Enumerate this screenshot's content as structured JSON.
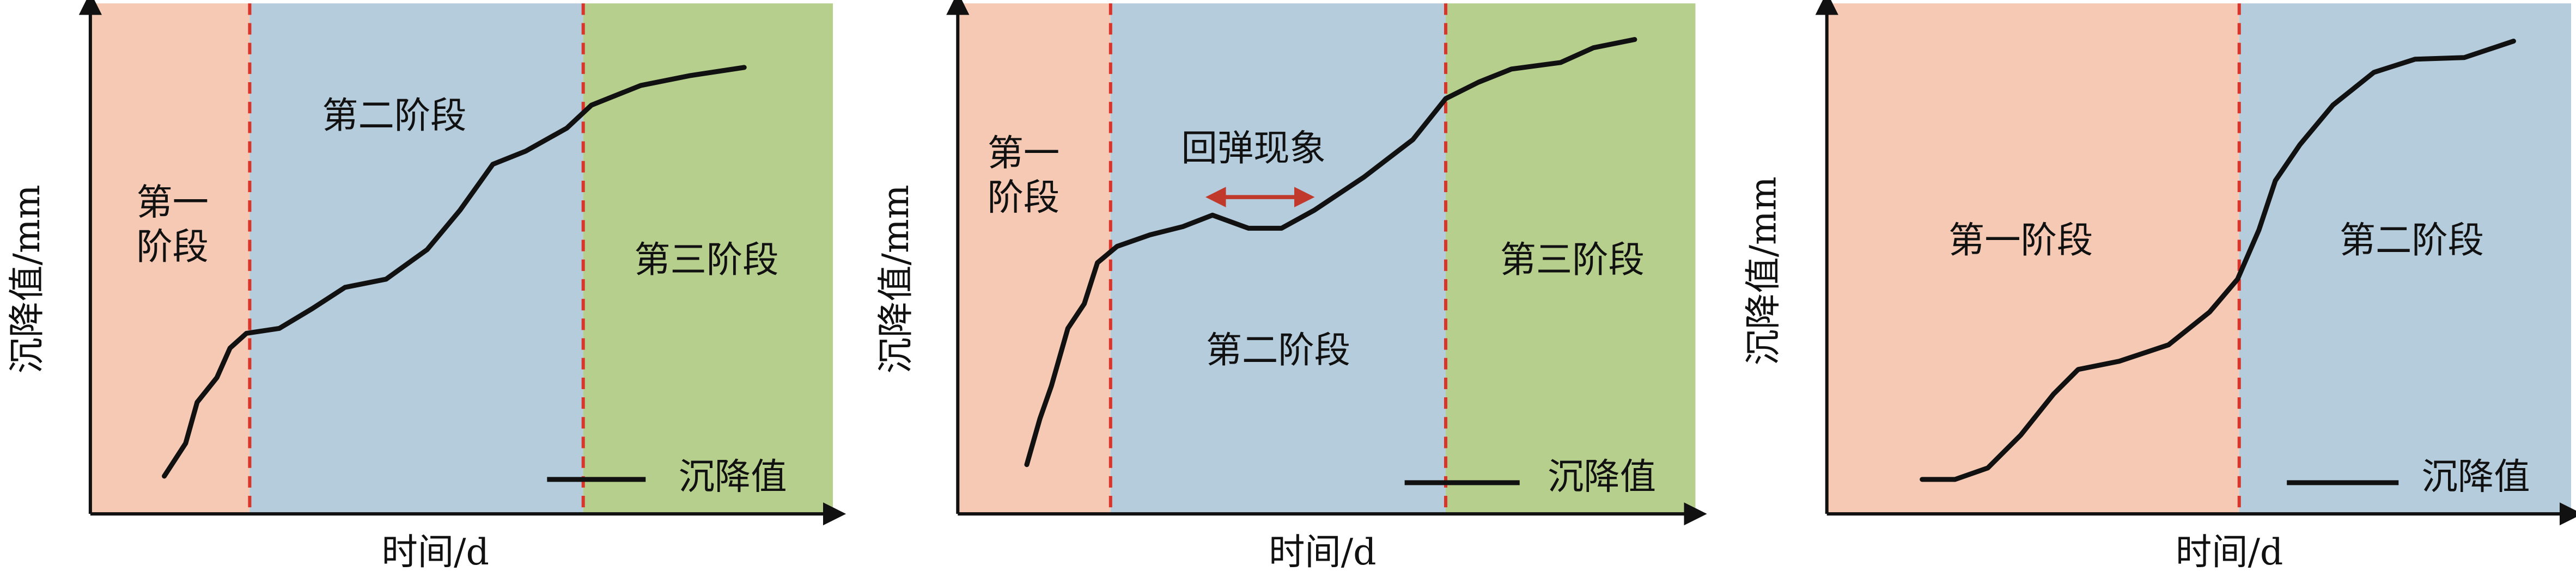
{
  "panels": [
    {
      "y_label": "沉降值/mm",
      "x_label": "时间/d",
      "stage1": [
        "第一",
        "阶段"
      ],
      "stage2": "第二阶段",
      "stage3": "第三阶段",
      "legend": "沉降值"
    },
    {
      "y_label": "沉降值/mm",
      "x_label": "时间/d",
      "stage1": [
        "第一",
        "阶段"
      ],
      "rebound": "回弹现象",
      "stage2": "第二阶段",
      "stage3": "第三阶段",
      "legend": "沉降值"
    },
    {
      "y_label": "沉降值/mm",
      "x_label": "时间/d",
      "stage1": "第一阶段",
      "stage2": "第二阶段",
      "legend": "沉降值"
    }
  ]
}
